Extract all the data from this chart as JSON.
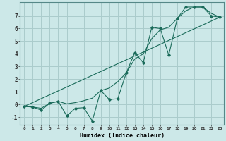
{
  "title": "",
  "xlabel": "Humidex (Indice chaleur)",
  "bg_color": "#cce8e8",
  "grid_color": "#aacccc",
  "line_color": "#1a6b5a",
  "xlim": [
    -0.5,
    23.5
  ],
  "ylim": [
    -1.6,
    8.1
  ],
  "xtick_labels": [
    "0",
    "1",
    "2",
    "3",
    "4",
    "5",
    "6",
    "7",
    "8",
    "9",
    "10",
    "11",
    "12",
    "13",
    "14",
    "15",
    "16",
    "17",
    "18",
    "19",
    "20",
    "21",
    "22",
    "23"
  ],
  "ytick_values": [
    -1,
    0,
    1,
    2,
    3,
    4,
    5,
    6,
    7
  ],
  "series_zigzag_x": [
    0,
    1,
    2,
    3,
    4,
    5,
    6,
    7,
    8,
    9,
    10,
    11,
    12,
    13,
    14,
    15,
    16,
    17,
    18,
    19,
    20,
    21,
    22,
    23
  ],
  "series_zigzag_y": [
    -0.15,
    -0.2,
    -0.45,
    0.1,
    0.25,
    -0.9,
    -0.3,
    -0.25,
    -1.3,
    1.1,
    0.4,
    0.45,
    2.5,
    4.1,
    3.3,
    6.1,
    6.0,
    3.9,
    6.8,
    7.7,
    7.7,
    7.7,
    7.0,
    6.9
  ],
  "series_smooth_x": [
    0,
    1,
    2,
    3,
    4,
    5,
    6,
    7,
    8,
    9,
    10,
    11,
    12,
    13,
    14,
    15,
    16,
    17,
    18,
    19,
    20,
    21,
    22,
    23
  ],
  "series_smooth_y": [
    -0.15,
    -0.2,
    -0.3,
    0.1,
    0.25,
    0.05,
    0.15,
    0.3,
    0.5,
    1.1,
    1.3,
    1.8,
    2.5,
    3.6,
    4.0,
    5.2,
    5.9,
    6.1,
    6.8,
    7.4,
    7.7,
    7.7,
    7.2,
    6.9
  ],
  "trend_x": [
    0,
    23
  ],
  "trend_y": [
    -0.15,
    6.9
  ]
}
